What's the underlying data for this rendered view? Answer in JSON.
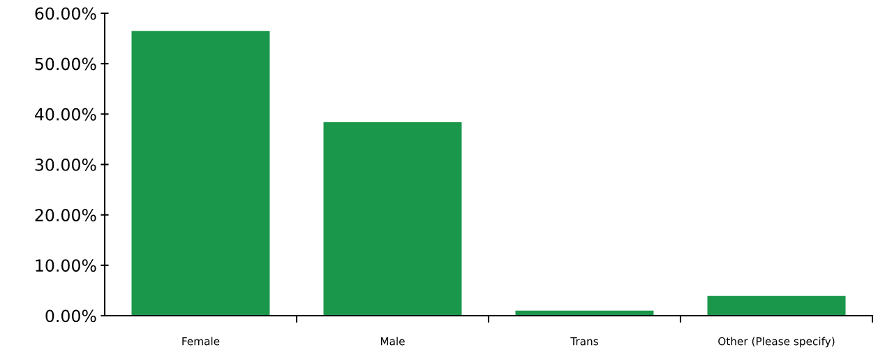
{
  "chart_data": {
    "type": "bar",
    "categories": [
      "Female",
      "Male",
      "Trans",
      "Other (Please specify)"
    ],
    "values": [
      56.5,
      38.4,
      1.0,
      3.9
    ],
    "color": "#1b974b",
    "ylim": [
      0,
      60
    ],
    "yticks": [
      {
        "value": 0,
        "label": "0.00%"
      },
      {
        "value": 10,
        "label": "10.00%"
      },
      {
        "value": 20,
        "label": "20.00%"
      },
      {
        "value": 30,
        "label": "30.00%"
      },
      {
        "value": 40,
        "label": "40.00%"
      },
      {
        "value": 50,
        "label": "50.00%"
      },
      {
        "value": 60,
        "label": "60.00%"
      }
    ],
    "grid": false,
    "legend": false
  }
}
